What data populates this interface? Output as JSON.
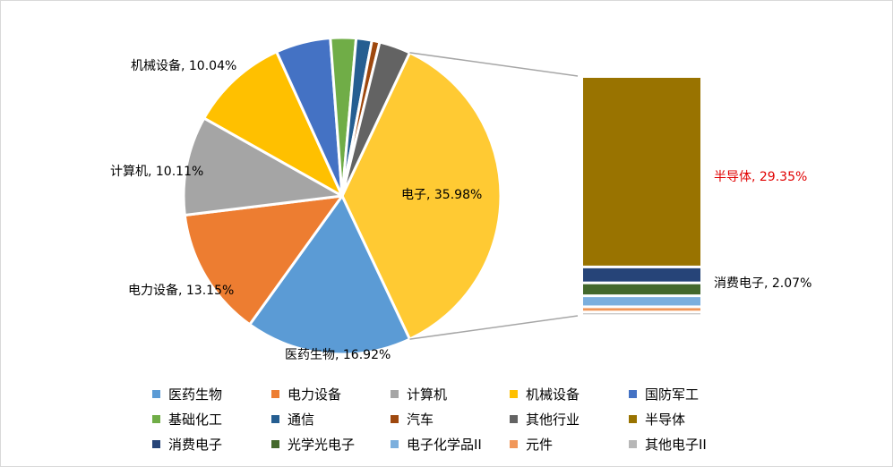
{
  "chart_data": {
    "type": "pie",
    "subtype": "bar-of-pie",
    "title": "",
    "pie": {
      "slices": [
        {
          "name": "电子",
          "value": 35.98,
          "label": "电子, 35.98%",
          "color": "#FFCA33"
        },
        {
          "name": "医药生物",
          "value": 16.92,
          "label": "医药生物, 16.92%",
          "color": "#5B9BD5"
        },
        {
          "name": "电力设备",
          "value": 13.15,
          "label": "电力设备, 13.15%",
          "color": "#ED7D31"
        },
        {
          "name": "计算机",
          "value": 10.11,
          "label": "计算机, 10.11%",
          "color": "#A5A5A5"
        },
        {
          "name": "机械设备",
          "value": 10.04,
          "label": "机械设备, 10.04%",
          "color": "#FFC000"
        },
        {
          "name": "国防军工",
          "value": 5.6,
          "label": "",
          "color": "#4472C4"
        },
        {
          "name": "基础化工",
          "value": 2.6,
          "label": "",
          "color": "#70AD47"
        },
        {
          "name": "通信",
          "value": 1.6,
          "label": "",
          "color": "#255E91"
        },
        {
          "name": "汽车",
          "value": 0.8,
          "label": "",
          "color": "#9E480E"
        },
        {
          "name": "其他行业",
          "value": 3.2,
          "label": "",
          "color": "#636363"
        }
      ]
    },
    "bar": {
      "parent": "电子",
      "segments": [
        {
          "name": "半导体",
          "value": 29.35,
          "label": "半导体, 29.35%",
          "color": "#997300",
          "label_color": "#E00000"
        },
        {
          "name": "消费电子",
          "value": 2.07,
          "label": "消费电子, 2.07%",
          "color": "#264478"
        },
        {
          "name": "光学光电子",
          "value": 1.6,
          "label": "",
          "color": "#43682B"
        },
        {
          "name": "电子化学品II",
          "value": 1.3,
          "label": "",
          "color": "#7CAFDD"
        },
        {
          "name": "元件",
          "value": 0.4,
          "label": "",
          "color": "#F1975A"
        },
        {
          "name": "其他电子II",
          "value": 0.1,
          "label": "",
          "color": "#B7B7B7"
        }
      ]
    },
    "legend": {
      "position": "bottom",
      "rows": [
        [
          {
            "name": "医药生物",
            "color": "#5B9BD5"
          },
          {
            "name": "电力设备",
            "color": "#ED7D31"
          },
          {
            "name": "计算机",
            "color": "#A5A5A5"
          },
          {
            "name": "机械设备",
            "color": "#FFC000"
          },
          {
            "name": "国防军工",
            "color": "#4472C4"
          }
        ],
        [
          {
            "name": "基础化工",
            "color": "#70AD47"
          },
          {
            "name": "通信",
            "color": "#255E91"
          },
          {
            "name": "汽车",
            "color": "#9E480E"
          },
          {
            "name": "其他行业",
            "color": "#636363"
          },
          {
            "name": "半导体",
            "color": "#997300"
          }
        ],
        [
          {
            "name": "消费电子",
            "color": "#264478"
          },
          {
            "name": "光学光电子",
            "color": "#43682B"
          },
          {
            "name": "电子化学品II",
            "color": "#7CAFDD"
          },
          {
            "name": "元件",
            "color": "#F1975A"
          },
          {
            "name": "其他电子II",
            "color": "#B7B7B7"
          }
        ]
      ]
    }
  }
}
